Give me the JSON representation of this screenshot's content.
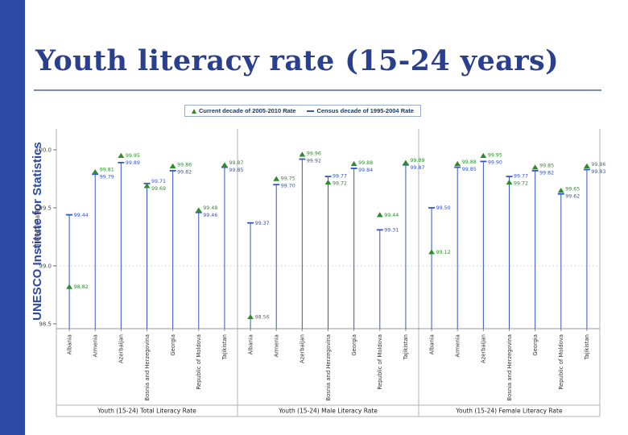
{
  "sidebar": {
    "text": "UNESCO Institute for Statistics"
  },
  "title": "Youth literacy rate (15-24 years)",
  "legend": {
    "current": "Current decade of 2005-2010 Rate",
    "census": "Census decade of 1995-2004 Rate"
  },
  "chart_data": {
    "type": "scatter",
    "ylabel": "Literacy Rate",
    "ylim": [
      98.45,
      100.1
    ],
    "yticks": [
      100.0,
      99.5,
      99.0,
      98.5
    ],
    "grid": "dotted horizontal line at 99.0",
    "legend_position": "top-center",
    "categories": [
      "Albania",
      "Armenia",
      "Azerbaijan",
      "Bosnia and Herzegovina",
      "Georgia",
      "Republic of Moldova",
      "Tajikistan"
    ],
    "colors": {
      "current": "#2e8b2e",
      "census": "#3355c8"
    },
    "panels": [
      {
        "title": "Youth (15-24) Total Literacy Rate",
        "series": [
          {
            "name": "Current decade of 2005-2010 Rate",
            "marker": "triangle",
            "values": [
              98.82,
              99.81,
              99.95,
              99.69,
              99.86,
              99.48,
              99.87
            ]
          },
          {
            "name": "Census decade of 1995-2004 Rate",
            "marker": "dash",
            "values": [
              99.44,
              99.79,
              99.89,
              99.71,
              99.82,
              99.46,
              99.85
            ]
          }
        ]
      },
      {
        "title": "Youth (15-24) Male Literacy Rate",
        "series": [
          {
            "name": "Current decade of 2005-2010 Rate",
            "marker": "triangle",
            "values": [
              98.56,
              99.75,
              99.96,
              99.72,
              99.88,
              99.44,
              99.89
            ]
          },
          {
            "name": "Census decade of 1995-2004 Rate",
            "marker": "dash",
            "values": [
              99.37,
              99.7,
              99.92,
              99.77,
              99.84,
              99.31,
              99.87
            ]
          }
        ]
      },
      {
        "title": "Youth (15-24) Female Literacy Rate",
        "series": [
          {
            "name": "Current decade of 2005-2010 Rate",
            "marker": "triangle",
            "values": [
              99.12,
              99.88,
              99.95,
              99.72,
              99.85,
              99.65,
              99.86
            ]
          },
          {
            "name": "Census decade of 1995-2004 Rate",
            "marker": "dash",
            "values": [
              99.5,
              99.85,
              99.9,
              99.77,
              99.82,
              99.62,
              99.83
            ]
          }
        ]
      }
    ]
  }
}
